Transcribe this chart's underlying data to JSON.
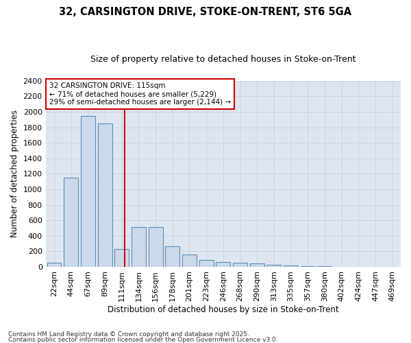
{
  "title1": "32, CARSINGTON DRIVE, STOKE-ON-TRENT, ST6 5GA",
  "title2": "Size of property relative to detached houses in Stoke-on-Trent",
  "xlabel": "Distribution of detached houses by size in Stoke-on-Trent",
  "ylabel": "Number of detached properties",
  "categories": [
    "22sqm",
    "44sqm",
    "67sqm",
    "89sqm",
    "111sqm",
    "134sqm",
    "156sqm",
    "178sqm",
    "201sqm",
    "223sqm",
    "246sqm",
    "268sqm",
    "290sqm",
    "313sqm",
    "335sqm",
    "357sqm",
    "380sqm",
    "402sqm",
    "424sqm",
    "447sqm",
    "469sqm"
  ],
  "values": [
    50,
    1150,
    1950,
    1850,
    230,
    510,
    510,
    265,
    155,
    85,
    60,
    55,
    40,
    30,
    20,
    12,
    7,
    4,
    2,
    1,
    1
  ],
  "bar_color": "#ccd9ea",
  "bar_edge_color": "#5b8db8",
  "grid_color": "#c8d4e3",
  "background_color": "#dde6f0",
  "annotation_text": "32 CARSINGTON DRIVE: 115sqm\n← 71% of detached houses are smaller (5,229)\n29% of semi-detached houses are larger (2,144) →",
  "annotation_box_color": "#ffffff",
  "annotation_box_edge": "#cc0000",
  "red_line_color": "#cc0000",
  "ylim": [
    0,
    2400
  ],
  "yticks": [
    0,
    200,
    400,
    600,
    800,
    1000,
    1200,
    1400,
    1600,
    1800,
    2000,
    2200,
    2400
  ],
  "footer1": "Contains HM Land Registry data © Crown copyright and database right 2025.",
  "footer2": "Contains public sector information licensed under the Open Government Licence v3.0.",
  "title1_fontsize": 10.5,
  "title2_fontsize": 9,
  "xlabel_fontsize": 8.5,
  "ylabel_fontsize": 8.5,
  "tick_fontsize": 8,
  "annotation_fontsize": 7.5,
  "footer_fontsize": 6.5
}
